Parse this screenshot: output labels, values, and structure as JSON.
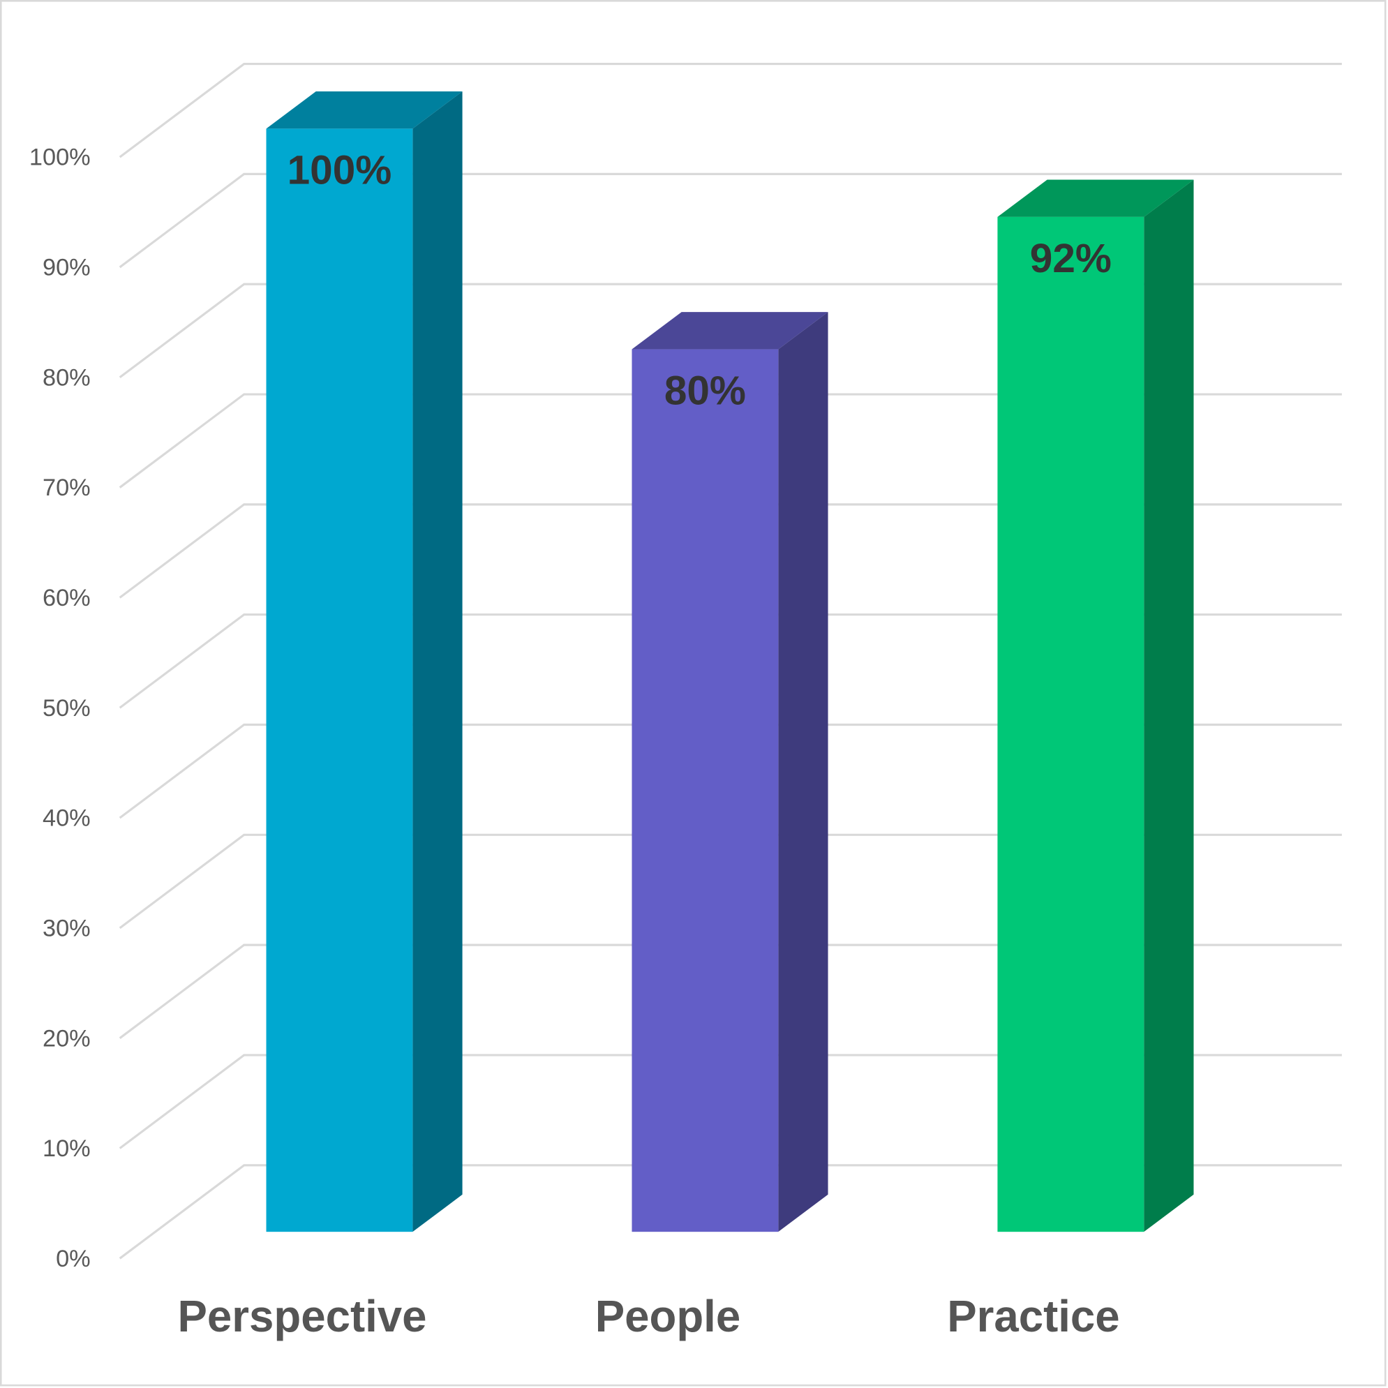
{
  "chart_data": {
    "type": "bar3d",
    "categories": [
      "Perspective",
      "People",
      "Practice"
    ],
    "values": [
      100,
      80,
      92
    ],
    "value_labels": [
      "100%",
      "80%",
      "92%"
    ],
    "colors": [
      "#00a8d0",
      "#635ec7",
      "#00c777"
    ],
    "ylim": [
      0,
      100
    ],
    "yticks": [
      {
        "value": 0,
        "label": "0%"
      },
      {
        "value": 10,
        "label": "10%"
      },
      {
        "value": 20,
        "label": "20%"
      },
      {
        "value": 30,
        "label": "30%"
      },
      {
        "value": 40,
        "label": "40%"
      },
      {
        "value": 50,
        "label": "50%"
      },
      {
        "value": 60,
        "label": "60%"
      },
      {
        "value": 70,
        "label": "70%"
      },
      {
        "value": 80,
        "label": "80%"
      },
      {
        "value": 90,
        "label": "90%"
      },
      {
        "value": 100,
        "label": "100%"
      }
    ],
    "grid": true
  }
}
